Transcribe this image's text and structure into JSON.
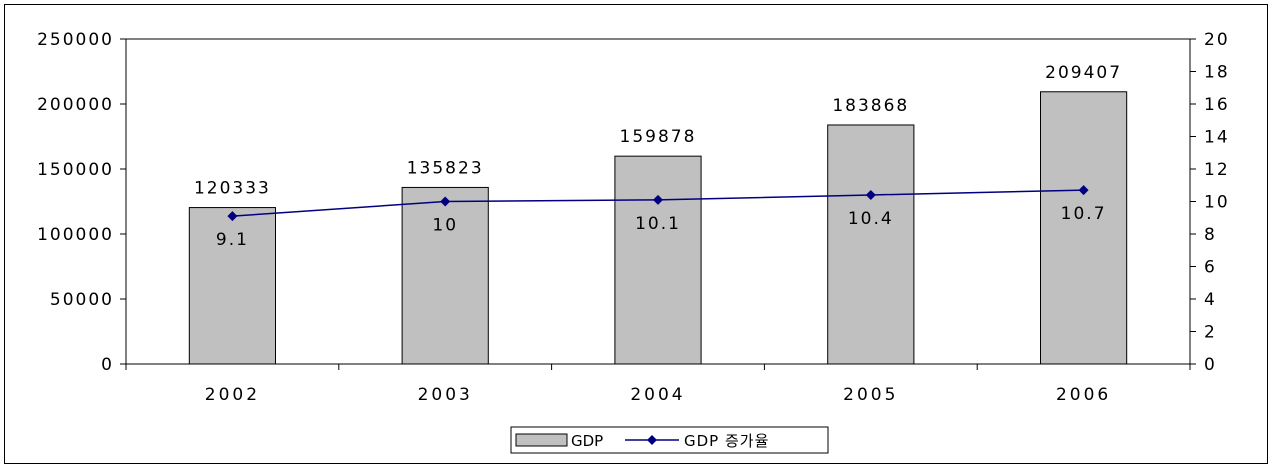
{
  "chart_data": {
    "type": "bar",
    "categories": [
      "2002",
      "2003",
      "2004",
      "2005",
      "2006"
    ],
    "series": [
      {
        "name": "GDP",
        "kind": "bar",
        "axis": "left",
        "values": [
          120333,
          135823,
          159878,
          183868,
          209407
        ],
        "labels": [
          "120333",
          "135823",
          "159878",
          "183868",
          "209407"
        ],
        "color": "#c0c0c0"
      },
      {
        "name": "GDP 증가율",
        "kind": "line",
        "axis": "right",
        "values": [
          9.1,
          10,
          10.1,
          10.4,
          10.7
        ],
        "labels": [
          "9.1",
          "10",
          "10.1",
          "10.4",
          "10.7"
        ],
        "color": "#000080"
      }
    ],
    "y_left": {
      "range": [
        0,
        250000
      ],
      "ticks": [
        "0",
        "50000",
        "100000",
        "150000",
        "200000",
        "250000"
      ]
    },
    "y_right": {
      "range": [
        0,
        20
      ],
      "ticks": [
        "0",
        "2",
        "4",
        "6",
        "8",
        "10",
        "12",
        "14",
        "16",
        "18",
        "20"
      ]
    },
    "grid": false,
    "legend_position": "bottom"
  }
}
